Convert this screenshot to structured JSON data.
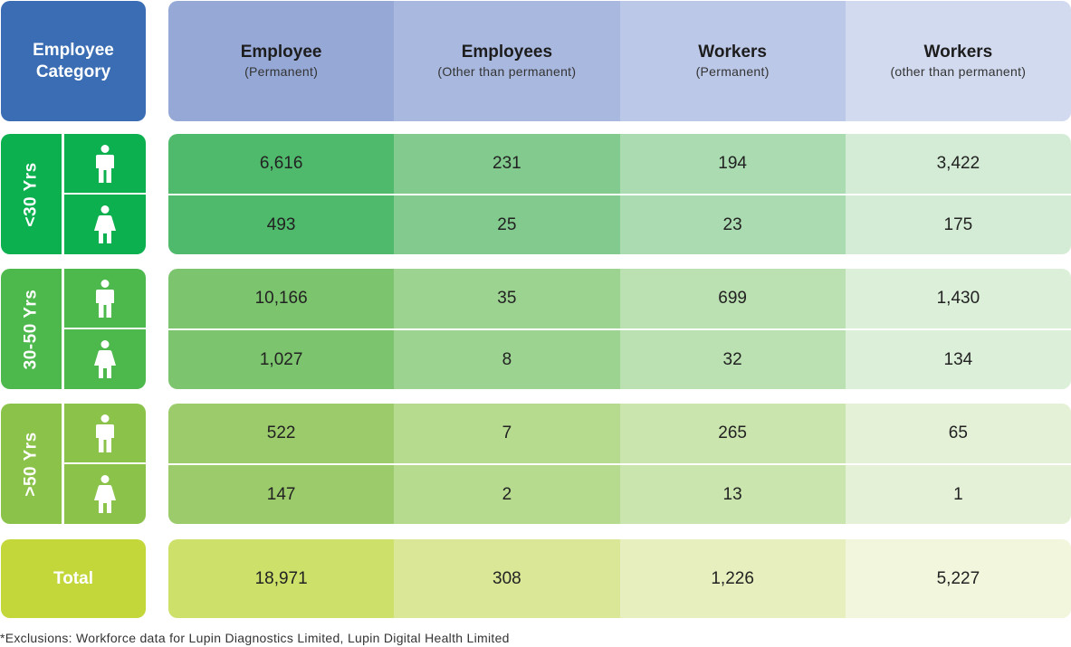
{
  "header": {
    "category_line1": "Employee",
    "category_line2": "Category",
    "columns": [
      {
        "title": "Employee",
        "subtitle": "(Permanent)"
      },
      {
        "title": "Employees",
        "subtitle": "(Other than permanent)"
      },
      {
        "title": "Workers",
        "subtitle": "(Permanent)"
      },
      {
        "title": "Workers",
        "subtitle": "(other than permanent)"
      }
    ]
  },
  "age_groups": [
    {
      "label": "<30 Yrs",
      "rows": [
        {
          "gender_icon": "male-icon",
          "values": [
            "6,616",
            "231",
            "194",
            "3,422"
          ]
        },
        {
          "gender_icon": "female-icon",
          "values": [
            "493",
            "25",
            "23",
            "175"
          ]
        }
      ]
    },
    {
      "label": "30-50 Yrs",
      "rows": [
        {
          "gender_icon": "male-icon",
          "values": [
            "10,166",
            "35",
            "699",
            "1,430"
          ]
        },
        {
          "gender_icon": "female-icon",
          "values": [
            "1,027",
            "8",
            "32",
            "134"
          ]
        }
      ]
    },
    {
      "label": ">50 Yrs",
      "rows": [
        {
          "gender_icon": "male-icon",
          "values": [
            "522",
            "7",
            "265",
            "65"
          ]
        },
        {
          "gender_icon": "female-icon",
          "values": [
            "147",
            "2",
            "13",
            "1"
          ]
        }
      ]
    }
  ],
  "total": {
    "label": "Total",
    "values": [
      "18,971",
      "308",
      "1,226",
      "5,227"
    ]
  },
  "footnote": "*Exclusions: Workforce data for Lupin Diagnostics Limited, Lupin Digital Health Limited",
  "colors": {
    "category_header": "#3a6db3",
    "column_headers": [
      "#95a8d6",
      "#a9b8df",
      "#bcc8e8",
      "#d2daef"
    ],
    "age_sides": [
      "#0cb04f",
      "#4db84c",
      "#8bc34a"
    ],
    "total_side": "#c3d73a",
    "age_rows": [
      [
        "#4fba6c",
        "#82ca8e",
        "#aadbb1",
        "#d4ecd5"
      ],
      [
        "#7cc46d",
        "#9dd391",
        "#bbe0b1",
        "#dcefd9"
      ],
      [
        "#9ccb6b",
        "#b6da8e",
        "#cbe5ae",
        "#e4f1d6"
      ]
    ],
    "total_row": [
      "#cde06a",
      "#dae797",
      "#e6efbd",
      "#f1f6dc"
    ]
  }
}
